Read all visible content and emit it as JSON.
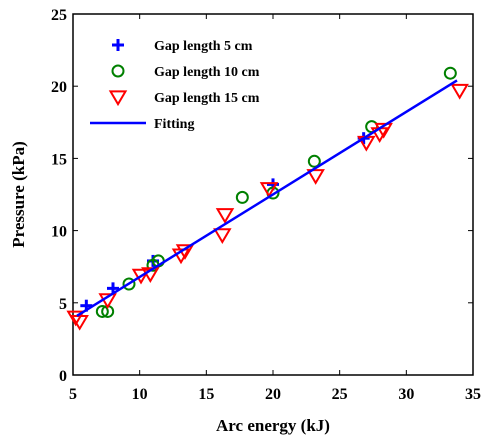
{
  "chart_data": {
    "type": "scatter",
    "xlabel": "Arc energy (kJ)",
    "ylabel": "Pressure (kPa)",
    "xlim": [
      5,
      35
    ],
    "ylim": [
      0,
      25
    ],
    "xticks": [
      5,
      10,
      15,
      20,
      25,
      30,
      35
    ],
    "yticks": [
      0,
      5,
      10,
      15,
      20,
      25
    ],
    "grid": false,
    "legend_position": "top-left",
    "series": [
      {
        "name": "Gap length 5 cm",
        "marker": "plus",
        "color": "#0000ff",
        "x": [
          6.0,
          8.0,
          11.0,
          20.0,
          26.8
        ],
        "y": [
          4.8,
          6.0,
          7.9,
          13.2,
          16.4
        ]
      },
      {
        "name": "Gap length 10 cm",
        "marker": "circle",
        "color": "#008000",
        "x": [
          7.2,
          7.6,
          9.2,
          11.0,
          11.4,
          17.7,
          20.0,
          23.1,
          27.4,
          33.3
        ],
        "y": [
          4.4,
          4.4,
          6.3,
          7.6,
          7.9,
          12.3,
          12.6,
          14.8,
          17.2,
          20.9
        ]
      },
      {
        "name": "Gap length 15 cm",
        "marker": "triangle-down",
        "color": "#ff0000",
        "x": [
          5.2,
          5.5,
          7.6,
          10.1,
          10.8,
          13.1,
          13.4,
          16.2,
          16.4,
          19.7,
          23.2,
          27.0,
          28.0,
          28.3,
          34.0
        ],
        "y": [
          4.0,
          3.7,
          5.2,
          6.9,
          7.0,
          8.3,
          8.6,
          9.7,
          11.1,
          12.9,
          13.8,
          16.1,
          16.7,
          17.0,
          19.7
        ]
      },
      {
        "name": "Fitting",
        "type": "line",
        "color": "#0000ff",
        "x": [
          5.3,
          33.8
        ],
        "y": [
          4.1,
          20.4
        ]
      }
    ]
  }
}
